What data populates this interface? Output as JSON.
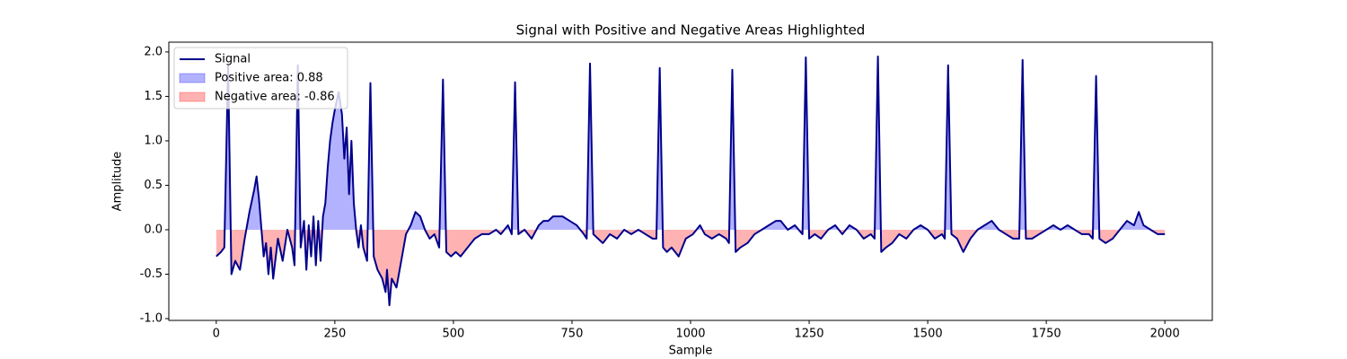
{
  "chart_data": {
    "type": "line",
    "title": "Signal with Positive and Negative Areas Highlighted",
    "x_label": "Sample",
    "y_label": "Amplitude",
    "x": [
      0,
      10,
      17,
      25,
      32,
      40,
      50,
      60,
      70,
      80,
      85,
      90,
      100,
      105,
      110,
      115,
      120,
      130,
      140,
      150,
      160,
      165,
      172,
      178,
      185,
      190,
      195,
      200,
      205,
      210,
      215,
      220,
      225,
      230,
      235,
      240,
      245,
      250,
      258,
      265,
      270,
      275,
      280,
      285,
      290,
      295,
      300,
      305,
      310,
      318,
      325,
      332,
      340,
      350,
      357,
      360,
      365,
      370,
      380,
      390,
      400,
      410,
      420,
      430,
      440,
      450,
      460,
      470,
      478,
      485,
      495,
      505,
      515,
      530,
      545,
      560,
      575,
      590,
      600,
      615,
      623,
      630,
      637,
      650,
      665,
      680,
      690,
      700,
      710,
      720,
      730,
      745,
      760,
      775,
      781,
      788,
      795,
      805,
      815,
      830,
      845,
      860,
      875,
      890,
      905,
      920,
      928,
      935,
      942,
      950,
      960,
      975,
      990,
      1005,
      1020,
      1030,
      1045,
      1060,
      1075,
      1081,
      1088,
      1095,
      1105,
      1120,
      1135,
      1150,
      1165,
      1180,
      1190,
      1205,
      1220,
      1236,
      1243,
      1250,
      1262,
      1275,
      1290,
      1305,
      1320,
      1335,
      1350,
      1365,
      1380,
      1388,
      1395,
      1402,
      1412,
      1425,
      1440,
      1455,
      1470,
      1485,
      1500,
      1515,
      1530,
      1536,
      1543,
      1550,
      1562,
      1575,
      1590,
      1605,
      1620,
      1635,
      1650,
      1665,
      1680,
      1693,
      1700,
      1707,
      1720,
      1735,
      1750,
      1765,
      1780,
      1795,
      1810,
      1825,
      1840,
      1848,
      1855,
      1862,
      1875,
      1890,
      1905,
      1920,
      1935,
      1945,
      1955,
      1970,
      1985,
      2000
    ],
    "series": [
      {
        "name": "Signal",
        "color": "#00008b",
        "values": [
          -0.3,
          -0.25,
          -0.2,
          1.85,
          -0.5,
          -0.35,
          -0.45,
          -0.1,
          0.2,
          0.45,
          0.6,
          0.35,
          -0.3,
          -0.15,
          -0.5,
          -0.2,
          -0.55,
          -0.1,
          -0.35,
          0.0,
          -0.2,
          -0.4,
          1.85,
          -0.2,
          0.1,
          -0.45,
          0.05,
          -0.3,
          0.15,
          -0.4,
          0.1,
          -0.35,
          0.15,
          0.3,
          0.7,
          1.0,
          1.2,
          1.35,
          1.55,
          1.3,
          0.8,
          1.15,
          0.4,
          1.0,
          0.3,
          0.0,
          -0.2,
          0.05,
          -0.2,
          -0.35,
          1.65,
          -0.3,
          -0.45,
          -0.55,
          -0.7,
          -0.45,
          -0.85,
          -0.55,
          -0.65,
          -0.35,
          -0.05,
          0.05,
          0.2,
          0.15,
          0.0,
          -0.1,
          -0.05,
          -0.2,
          1.69,
          -0.25,
          -0.3,
          -0.25,
          -0.3,
          -0.2,
          -0.1,
          -0.05,
          -0.05,
          0.0,
          -0.05,
          0.05,
          -0.05,
          1.66,
          -0.05,
          0.0,
          -0.1,
          0.05,
          0.1,
          0.1,
          0.15,
          0.15,
          0.15,
          0.1,
          0.05,
          -0.05,
          -0.1,
          1.87,
          -0.05,
          -0.1,
          -0.15,
          -0.05,
          -0.1,
          0.0,
          -0.05,
          0.0,
          -0.05,
          -0.1,
          -0.1,
          1.82,
          -0.2,
          -0.25,
          -0.2,
          -0.3,
          -0.1,
          -0.05,
          0.05,
          -0.05,
          -0.1,
          -0.05,
          -0.1,
          -0.15,
          1.8,
          -0.25,
          -0.2,
          -0.15,
          -0.05,
          0.0,
          0.05,
          0.1,
          0.1,
          0.0,
          0.05,
          -0.05,
          1.94,
          -0.1,
          -0.05,
          -0.1,
          0.0,
          0.05,
          -0.05,
          0.05,
          0.0,
          -0.1,
          -0.05,
          -0.1,
          1.95,
          -0.25,
          -0.2,
          -0.15,
          -0.05,
          -0.1,
          0.0,
          0.05,
          0.0,
          -0.1,
          -0.05,
          -0.1,
          1.85,
          -0.05,
          -0.1,
          -0.25,
          -0.1,
          0.0,
          0.05,
          0.1,
          0.0,
          -0.05,
          -0.1,
          -0.1,
          1.91,
          -0.1,
          -0.1,
          -0.05,
          0.0,
          0.05,
          0.0,
          0.05,
          0.0,
          -0.05,
          -0.05,
          -0.1,
          1.73,
          -0.1,
          -0.15,
          -0.1,
          0.0,
          0.1,
          0.05,
          0.2,
          0.05,
          0.0,
          -0.05,
          -0.05
        ]
      }
    ],
    "fills": [
      {
        "name": "Positive area: 0.88",
        "color": "#0000ff",
        "side": "positive"
      },
      {
        "name": "Negative area: -0.86",
        "color": "#ff0000",
        "side": "negative"
      }
    ],
    "xlim": [
      -100,
      2100
    ],
    "ylim": [
      -1.02,
      2.11
    ],
    "xticks": [
      0,
      250,
      500,
      750,
      1000,
      1250,
      1500,
      1750,
      2000
    ],
    "yticks": [
      {
        "value": -1.0,
        "label": "-1.0"
      },
      {
        "value": -0.5,
        "label": "-0.5"
      },
      {
        "value": 0.0,
        "label": "0.0"
      },
      {
        "value": 0.5,
        "label": "0.5"
      },
      {
        "value": 1.0,
        "label": "1.0"
      },
      {
        "value": 1.5,
        "label": "1.5"
      },
      {
        "value": 2.0,
        "label": "2.0"
      }
    ],
    "legend": "upper left"
  }
}
